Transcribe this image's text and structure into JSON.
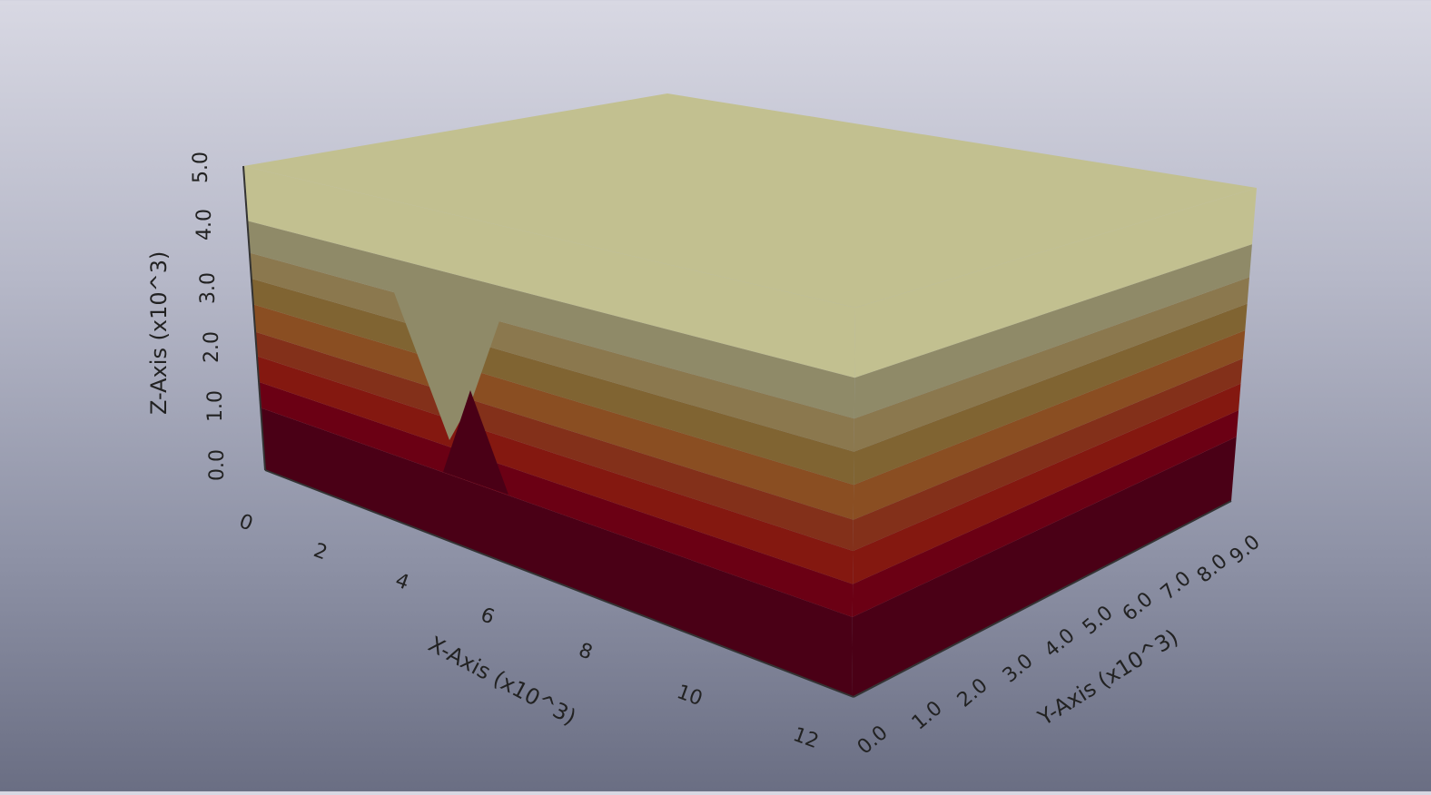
{
  "scene": {
    "type": "3d-layered-block",
    "background": {
      "top": "#d8d8e3",
      "bottom": "#6a6e83"
    }
  },
  "axes": {
    "x": {
      "title": "X-Axis (x10^3)",
      "ticks": [
        "0",
        "2",
        "4",
        "6",
        "8",
        "10",
        "12"
      ],
      "range": [
        0,
        12
      ]
    },
    "y": {
      "title": "Y-Axis (x10^3)",
      "ticks": [
        "0.0",
        "1.0",
        "2.0",
        "3.0",
        "4.0",
        "5.0",
        "6.0",
        "7.0",
        "8.0",
        "9.0"
      ],
      "range": [
        0,
        9
      ]
    },
    "z": {
      "title": "Z-Axis (x10^3)",
      "ticks": [
        "0.0",
        "1.0",
        "2.0",
        "3.0",
        "4.0",
        "5.0"
      ],
      "range": [
        0,
        5
      ]
    }
  },
  "layers": {
    "count": 9,
    "colors_bottom_to_top": [
      "#4a0016",
      "#6b0014",
      "#841810",
      "#83301a",
      "#8a4e22",
      "#806432",
      "#8b784e",
      "#8f8a68",
      "#c2c090"
    ]
  }
}
